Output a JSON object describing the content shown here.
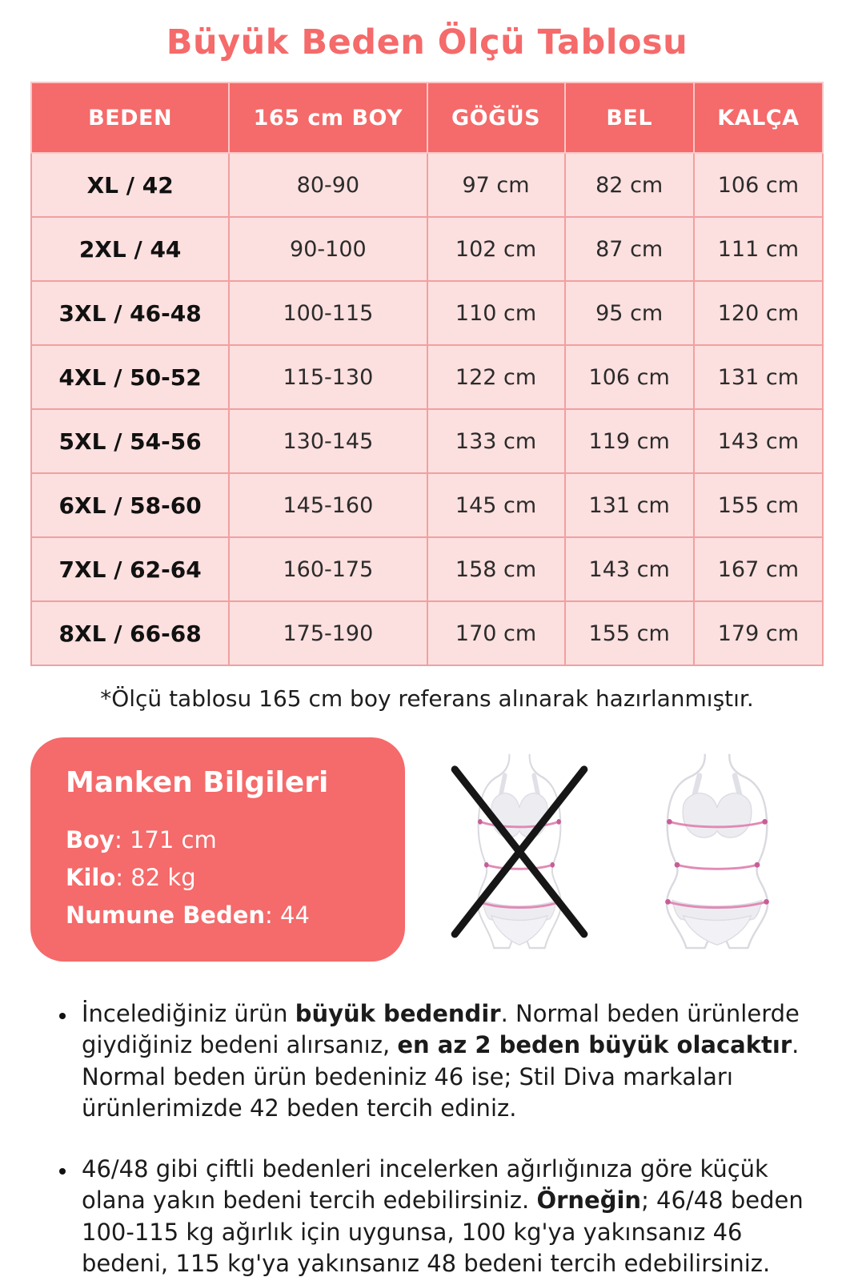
{
  "page": {
    "title": "Büyük Beden Ölçü Tablosu"
  },
  "colors": {
    "accent_coral": "#f56a6a",
    "cell_pink": "#fcdfdf",
    "cell_border_pink": "#f1a0a0",
    "header_border_pink": "#f8c6c6",
    "text_dark": "#212121",
    "figure_outline_gray": "#d9d9df",
    "figure_fill_gray": "#ededf1",
    "measure_line_pink": "#e18ab5",
    "measure_dot_pink": "#c95d97",
    "cross_black": "#161616"
  },
  "size_table": {
    "headers": [
      "BEDEN",
      "165 cm BOY",
      "GÖĞÜS",
      "BEL",
      "KALÇA"
    ],
    "rows": [
      [
        "XL / 42",
        "80-90",
        "97 cm",
        "82 cm",
        "106 cm"
      ],
      [
        "2XL / 44",
        "90-100",
        "102 cm",
        "87 cm",
        "111 cm"
      ],
      [
        "3XL / 46-48",
        "100-115",
        "110 cm",
        "95 cm",
        "120 cm"
      ],
      [
        "4XL / 50-52",
        "115-130",
        "122 cm",
        "106 cm",
        "131 cm"
      ],
      [
        "5XL / 54-56",
        "130-145",
        "133 cm",
        "119 cm",
        "143 cm"
      ],
      [
        "6XL / 58-60",
        "145-160",
        "145 cm",
        "131 cm",
        "155 cm"
      ],
      [
        "7XL / 62-64",
        "160-175",
        "158 cm",
        "143 cm",
        "167 cm"
      ],
      [
        "8XL / 66-68",
        "175-190",
        "170 cm",
        "155 cm",
        "179 cm"
      ]
    ],
    "footnote": "*Ölçü tablosu 165 cm boy referans alınarak hazırlanmıştır."
  },
  "model_info": {
    "title": "Manken Bilgileri",
    "separator": ": ",
    "fields": [
      {
        "label": "Boy",
        "value": "171 cm"
      },
      {
        "label": "Kilo",
        "value": "82 kg"
      },
      {
        "label": "Numune Beden",
        "value": "44"
      }
    ]
  },
  "figures": {
    "wrong": "slim-body-crossed-out",
    "correct": "plus-size-body-with-measure-lines"
  },
  "notes": [
    {
      "segments": [
        {
          "text": "İncelediğiniz ürün ",
          "bold": false
        },
        {
          "text": "büyük bedendir",
          "bold": true
        },
        {
          "text": ". Normal beden ürünlerde giydiğiniz bedeni alırsanız, ",
          "bold": false
        },
        {
          "text": "en az 2 beden büyük olacaktır",
          "bold": true
        },
        {
          "text": ". Normal beden ürün bedeniniz 46 ise; Stil Diva markaları ürünlerimizde 42 beden tercih ediniz.",
          "bold": false
        }
      ]
    },
    {
      "segments": [
        {
          "text": "46/48 gibi çiftli bedenleri incelerken ağırlığınıza göre küçük olana yakın bedeni tercih edebilirsiniz. ",
          "bold": false
        },
        {
          "text": "Örneğin",
          "bold": true
        },
        {
          "text": "; 46/48 beden 100-115 kg ağırlık için uygunsa, 100 kg'ya yakınsanız 46 bedeni, 115 kg'ya yakınsanız 48 bedeni tercih edebilirsiniz.",
          "bold": false
        }
      ]
    }
  ]
}
